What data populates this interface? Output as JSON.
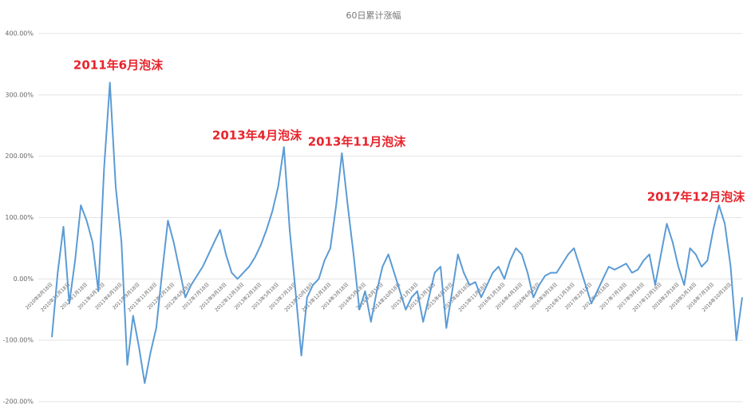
{
  "chart_data": {
    "type": "line",
    "title": "60日累计涨幅",
    "color": "#5b9bd5",
    "grid": true,
    "ylim": [
      -200,
      400
    ],
    "yticks": [
      {
        "value": -200,
        "label": "-200.00%"
      },
      {
        "value": -100,
        "label": "-100.00%"
      },
      {
        "value": 0,
        "label": "0.00%"
      },
      {
        "value": 100,
        "label": "100.00%"
      },
      {
        "value": 200,
        "label": "200.00%"
      },
      {
        "value": 300,
        "label": "300.00%"
      },
      {
        "value": 400,
        "label": "400.00%"
      }
    ],
    "annotations": [
      "2011年6月泡沫",
      "2013年4月泡沫",
      "2013年11月泡沫",
      "2017年12月泡沫"
    ],
    "categories": [
      "2010年8月18日",
      null,
      null,
      "2010年11月18日",
      null,
      null,
      "2011年1月18日",
      null,
      null,
      "2011年4月18日",
      null,
      null,
      "2011年6月18日",
      null,
      null,
      "2011年9月18日",
      null,
      null,
      "2011年11月18日",
      null,
      null,
      "2012年2月18日",
      null,
      null,
      "2012年4月18日",
      null,
      null,
      "2012年7月18日",
      null,
      null,
      "2012年9月18日",
      null,
      null,
      "2012年12月18日",
      null,
      null,
      "2013年2月18日",
      null,
      null,
      "2013年5月18日",
      null,
      null,
      "2013年7月18日",
      null,
      null,
      "2013年10月18日",
      null,
      null,
      "2013年12月18日",
      null,
      null,
      "2014年3月18日",
      null,
      null,
      "2014年5月18日",
      null,
      null,
      "2014年8月18日",
      null,
      null,
      "2014年10月18日",
      null,
      null,
      "2015年1月18日",
      null,
      null,
      "2015年3月18日",
      null,
      null,
      "2015年6月18日",
      null,
      null,
      "2015年8月18日",
      null,
      null,
      "2015年11月18日",
      null,
      null,
      "2016年1月18日",
      null,
      null,
      "2016年4月18日",
      null,
      null,
      "2016年6月18日",
      null,
      null,
      "2016年9月18日",
      null,
      null,
      "2016年11月18日",
      null,
      null,
      "2017年2月18日",
      null,
      null,
      "2017年4月18日",
      null,
      null,
      "2017年7月18日",
      null,
      null,
      "2017年9月18日",
      null,
      null,
      "2017年12月18日",
      null,
      null,
      "2018年2月18日",
      null,
      null,
      "2018年5月18日",
      null,
      null,
      "2018年7月18日",
      null,
      null,
      "2018年10月18日",
      null,
      null
    ],
    "values": [
      -95,
      10,
      85,
      -40,
      30,
      120,
      95,
      60,
      -20,
      180,
      320,
      150,
      60,
      -140,
      -60,
      -110,
      -170,
      -120,
      -80,
      10,
      95,
      60,
      15,
      -30,
      -10,
      5,
      20,
      40,
      60,
      80,
      40,
      10,
      0,
      10,
      20,
      35,
      55,
      80,
      110,
      150,
      215,
      80,
      -20,
      -125,
      -30,
      -10,
      0,
      30,
      50,
      120,
      205,
      120,
      40,
      -50,
      -20,
      -70,
      -20,
      20,
      40,
      10,
      -20,
      -50,
      -30,
      -20,
      -70,
      -30,
      10,
      20,
      -80,
      -20,
      40,
      10,
      -10,
      -5,
      -30,
      -10,
      10,
      20,
      0,
      30,
      50,
      40,
      10,
      -30,
      -10,
      5,
      10,
      10,
      25,
      40,
      50,
      20,
      -10,
      -40,
      -20,
      0,
      20,
      15,
      20,
      25,
      10,
      15,
      30,
      40,
      -10,
      40,
      90,
      60,
      20,
      -10,
      50,
      40,
      20,
      30,
      80,
      120,
      90,
      20,
      -100,
      -30
    ]
  }
}
